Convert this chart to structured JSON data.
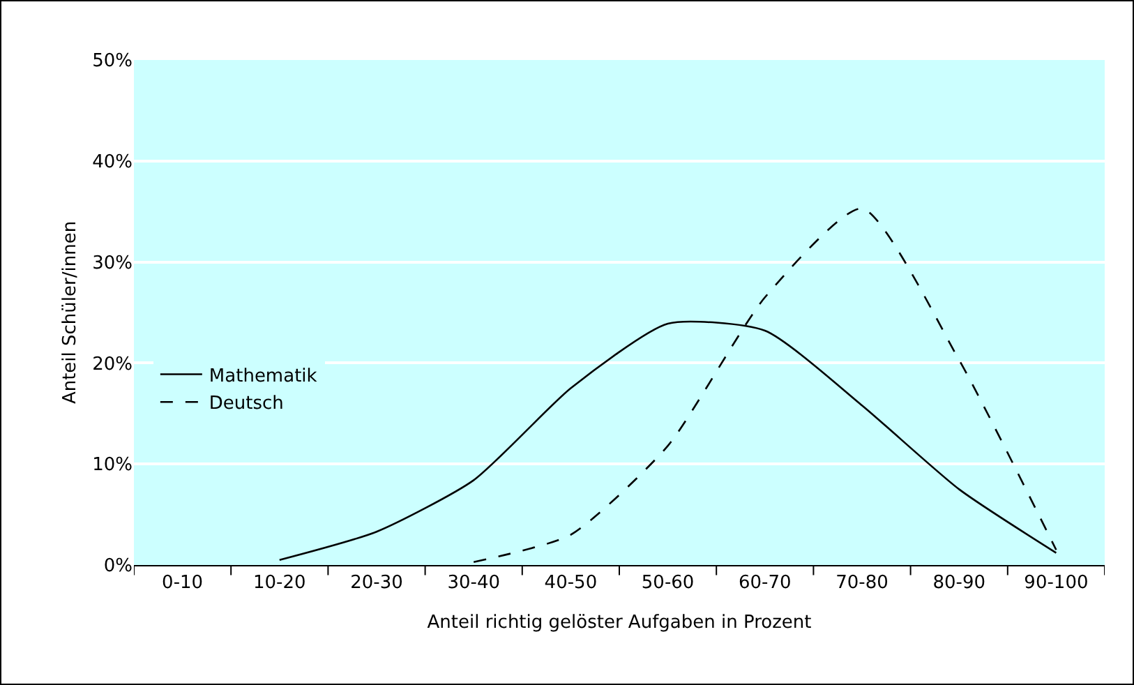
{
  "chart_data": {
    "type": "line",
    "xlabel": "Anteil richtig gelöster Aufgaben in Prozent",
    "ylabel": "Anteil Schüler/innen",
    "categories": [
      "0-10",
      "10-20",
      "20-30",
      "30-40",
      "40-50",
      "50-60",
      "60-70",
      "70-80",
      "80-90",
      "90-100"
    ],
    "ylim": [
      0,
      50
    ],
    "yticks": [
      {
        "value": 0,
        "label": "0%"
      },
      {
        "value": 10,
        "label": "10%"
      },
      {
        "value": 20,
        "label": "20%"
      },
      {
        "value": 30,
        "label": "30%"
      },
      {
        "value": 40,
        "label": "40%"
      },
      {
        "value": 50,
        "label": "50%"
      }
    ],
    "grid": "y",
    "legend": "left",
    "series": [
      {
        "name": "Mathematik",
        "color": "#000000",
        "line_style": "solid",
        "values": [
          null,
          0.5,
          3.3,
          8.4,
          17.5,
          23.9,
          23.2,
          15.8,
          7.5,
          1.2
        ]
      },
      {
        "name": "Deutsch",
        "color": "#000000",
        "line_style": "dashed",
        "values": [
          null,
          null,
          null,
          0.3,
          3.0,
          11.8,
          26.5,
          35.3,
          20.3,
          1.5
        ]
      }
    ]
  }
}
